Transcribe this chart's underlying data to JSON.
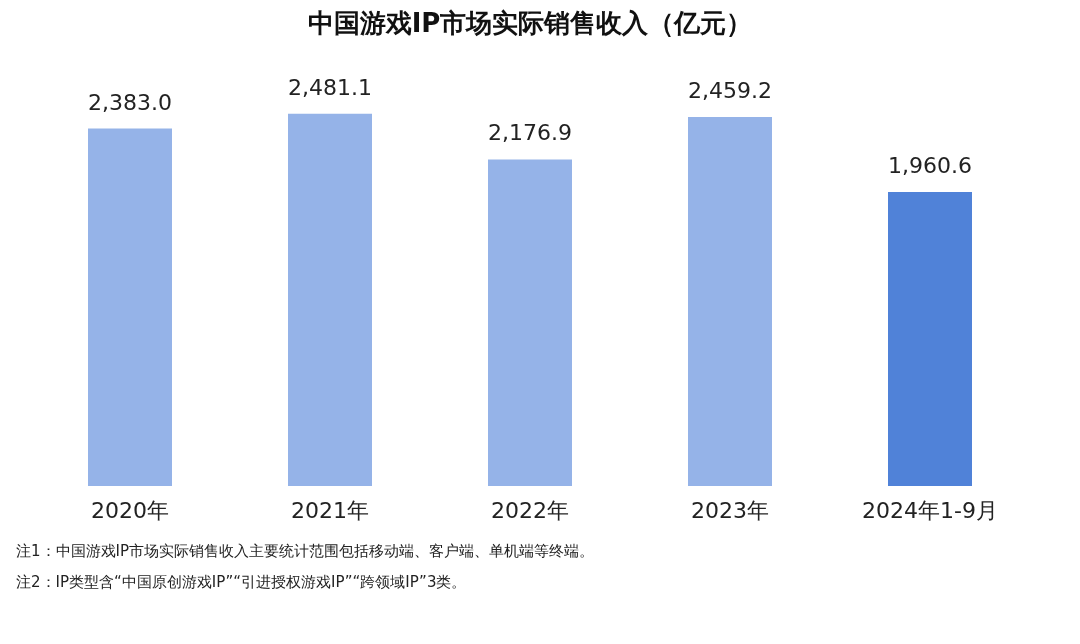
{
  "chart_data": {
    "type": "bar",
    "title": "中国游戏IP市场实际销售收入（亿元）",
    "categories": [
      "2020年",
      "2021年",
      "2022年",
      "2023年",
      "2024年1-9月"
    ],
    "values": [
      2383.0,
      2481.1,
      2176.9,
      2459.2,
      1960.6
    ],
    "colors": [
      "#95b3e8",
      "#95b3e8",
      "#95b3e8",
      "#95b3e8",
      "#5082d8"
    ],
    "value_labels": [
      "2,383.0",
      "2,481.1",
      "2,176.9",
      "2,459.2",
      "1,960.6"
    ],
    "annotations": [
      "注1：中国游戏IP市场实际销售收入主要统计范围包括移动端、客户端、单机端等终端。",
      "注2：IP类型含“中国原创游戏IP”“引进授权游戏IP”“跨领域IP”3类。"
    ]
  }
}
